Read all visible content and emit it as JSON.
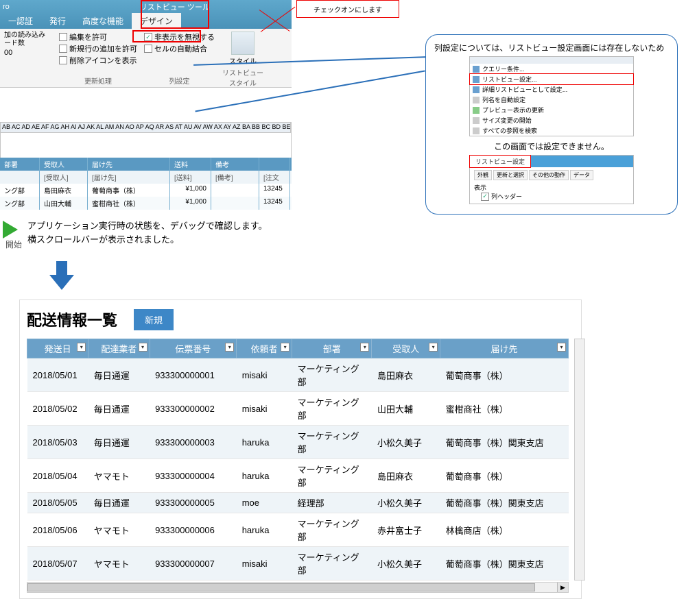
{
  "ribbon": {
    "suffix": "ro",
    "tool_tab": "リストビュー ツール",
    "tabs": [
      "一認証",
      "発行",
      "高度な機能",
      "デザイン"
    ],
    "group1": {
      "name": "更新処理",
      "load_label": "加の読み込み\nード数",
      "load_value": "00",
      "chk_edit": "編集を許可",
      "chk_add": "新規行の追加を許可",
      "chk_del": "削除アイコンを表示"
    },
    "group2": {
      "name": "列設定",
      "chk_ignore": "非表示を無視する",
      "chk_merge": "セルの自動結合"
    },
    "group3": {
      "name": "リストビュースタイル",
      "style": "スタイル"
    }
  },
  "callout_text": "チェックオンにします",
  "bubble": {
    "line1": "列設定については、リストビュー設定画面には存在しないため",
    "line2": "この画面では設定できません。",
    "menu": [
      "クエリー条件...",
      "リストビュー設定...",
      "詳細リストビューとして設定...",
      "列名を自動設定",
      "プレビュー表示の更新",
      "サイズ変更の開始",
      "すべての参照を検索"
    ],
    "mini2_tab": "リストビュー設定",
    "mini2_subtabs": [
      "外観",
      "更新と選択",
      "その他の動作",
      "データ"
    ],
    "mini2_section": "表示",
    "mini2_chk": "列ヘッダー"
  },
  "preview": {
    "col_letters": "AB AC AD AE AF AG AH AI AJ AK AL AM AN AO AP AQ AR AS AT AU AV AW AX AY AZ BA BB BC BD BE BF BG BH",
    "headers": [
      "部署",
      "受取人",
      "届け先",
      "送料",
      "備考",
      ""
    ],
    "filters": [
      "",
      "[受取人]",
      "[届け先]",
      "[送料]",
      "[備考]",
      "[注文"
    ],
    "rows": [
      [
        "ング部",
        "島田麻衣",
        "葡萄商事（株）",
        "¥1,000",
        "",
        "13245"
      ],
      [
        "ング部",
        "山田大輔",
        "蜜柑商社（株）",
        "¥1,000",
        "",
        "13245"
      ]
    ]
  },
  "debug": {
    "label": "開始",
    "l1": "アプリケーション実行時の状態を、デバッグで確認します。",
    "l2": "横スクロールバーが表示されました。"
  },
  "list": {
    "title": "配送情報一覧",
    "new_btn": "新規",
    "headers": [
      "発送日",
      "配達業者",
      "伝票番号",
      "依頼者",
      "部署",
      "受取人",
      "届け先"
    ],
    "rows": [
      [
        "2018/05/01",
        "毎日通運",
        "933300000001",
        "misaki",
        "マーケティング部",
        "島田麻衣",
        "葡萄商事（株）"
      ],
      [
        "2018/05/02",
        "毎日通運",
        "933300000002",
        "misaki",
        "マーケティング部",
        "山田大輔",
        "蜜柑商社（株）"
      ],
      [
        "2018/05/03",
        "毎日通運",
        "933300000003",
        "haruka",
        "マーケティング部",
        "小松久美子",
        "葡萄商事（株）関東支店"
      ],
      [
        "2018/05/04",
        "ヤマモト",
        "933300000004",
        "haruka",
        "マーケティング部",
        "島田麻衣",
        "葡萄商事（株）"
      ],
      [
        "2018/05/05",
        "毎日通運",
        "933300000005",
        "moe",
        "経理部",
        "小松久美子",
        "葡萄商事（株）関東支店"
      ],
      [
        "2018/05/06",
        "ヤマモト",
        "933300000006",
        "haruka",
        "マーケティング部",
        "赤井富士子",
        "林檎商店（株）"
      ],
      [
        "2018/05/07",
        "ヤマモト",
        "933300000007",
        "misaki",
        "マーケティング部",
        "小松久美子",
        "葡萄商事（株）関東支店"
      ]
    ]
  },
  "colors": {
    "accent": "#3d87c7",
    "header": "#6aa0c8",
    "red": "#e00000",
    "arrow": "#2a6fb8"
  }
}
